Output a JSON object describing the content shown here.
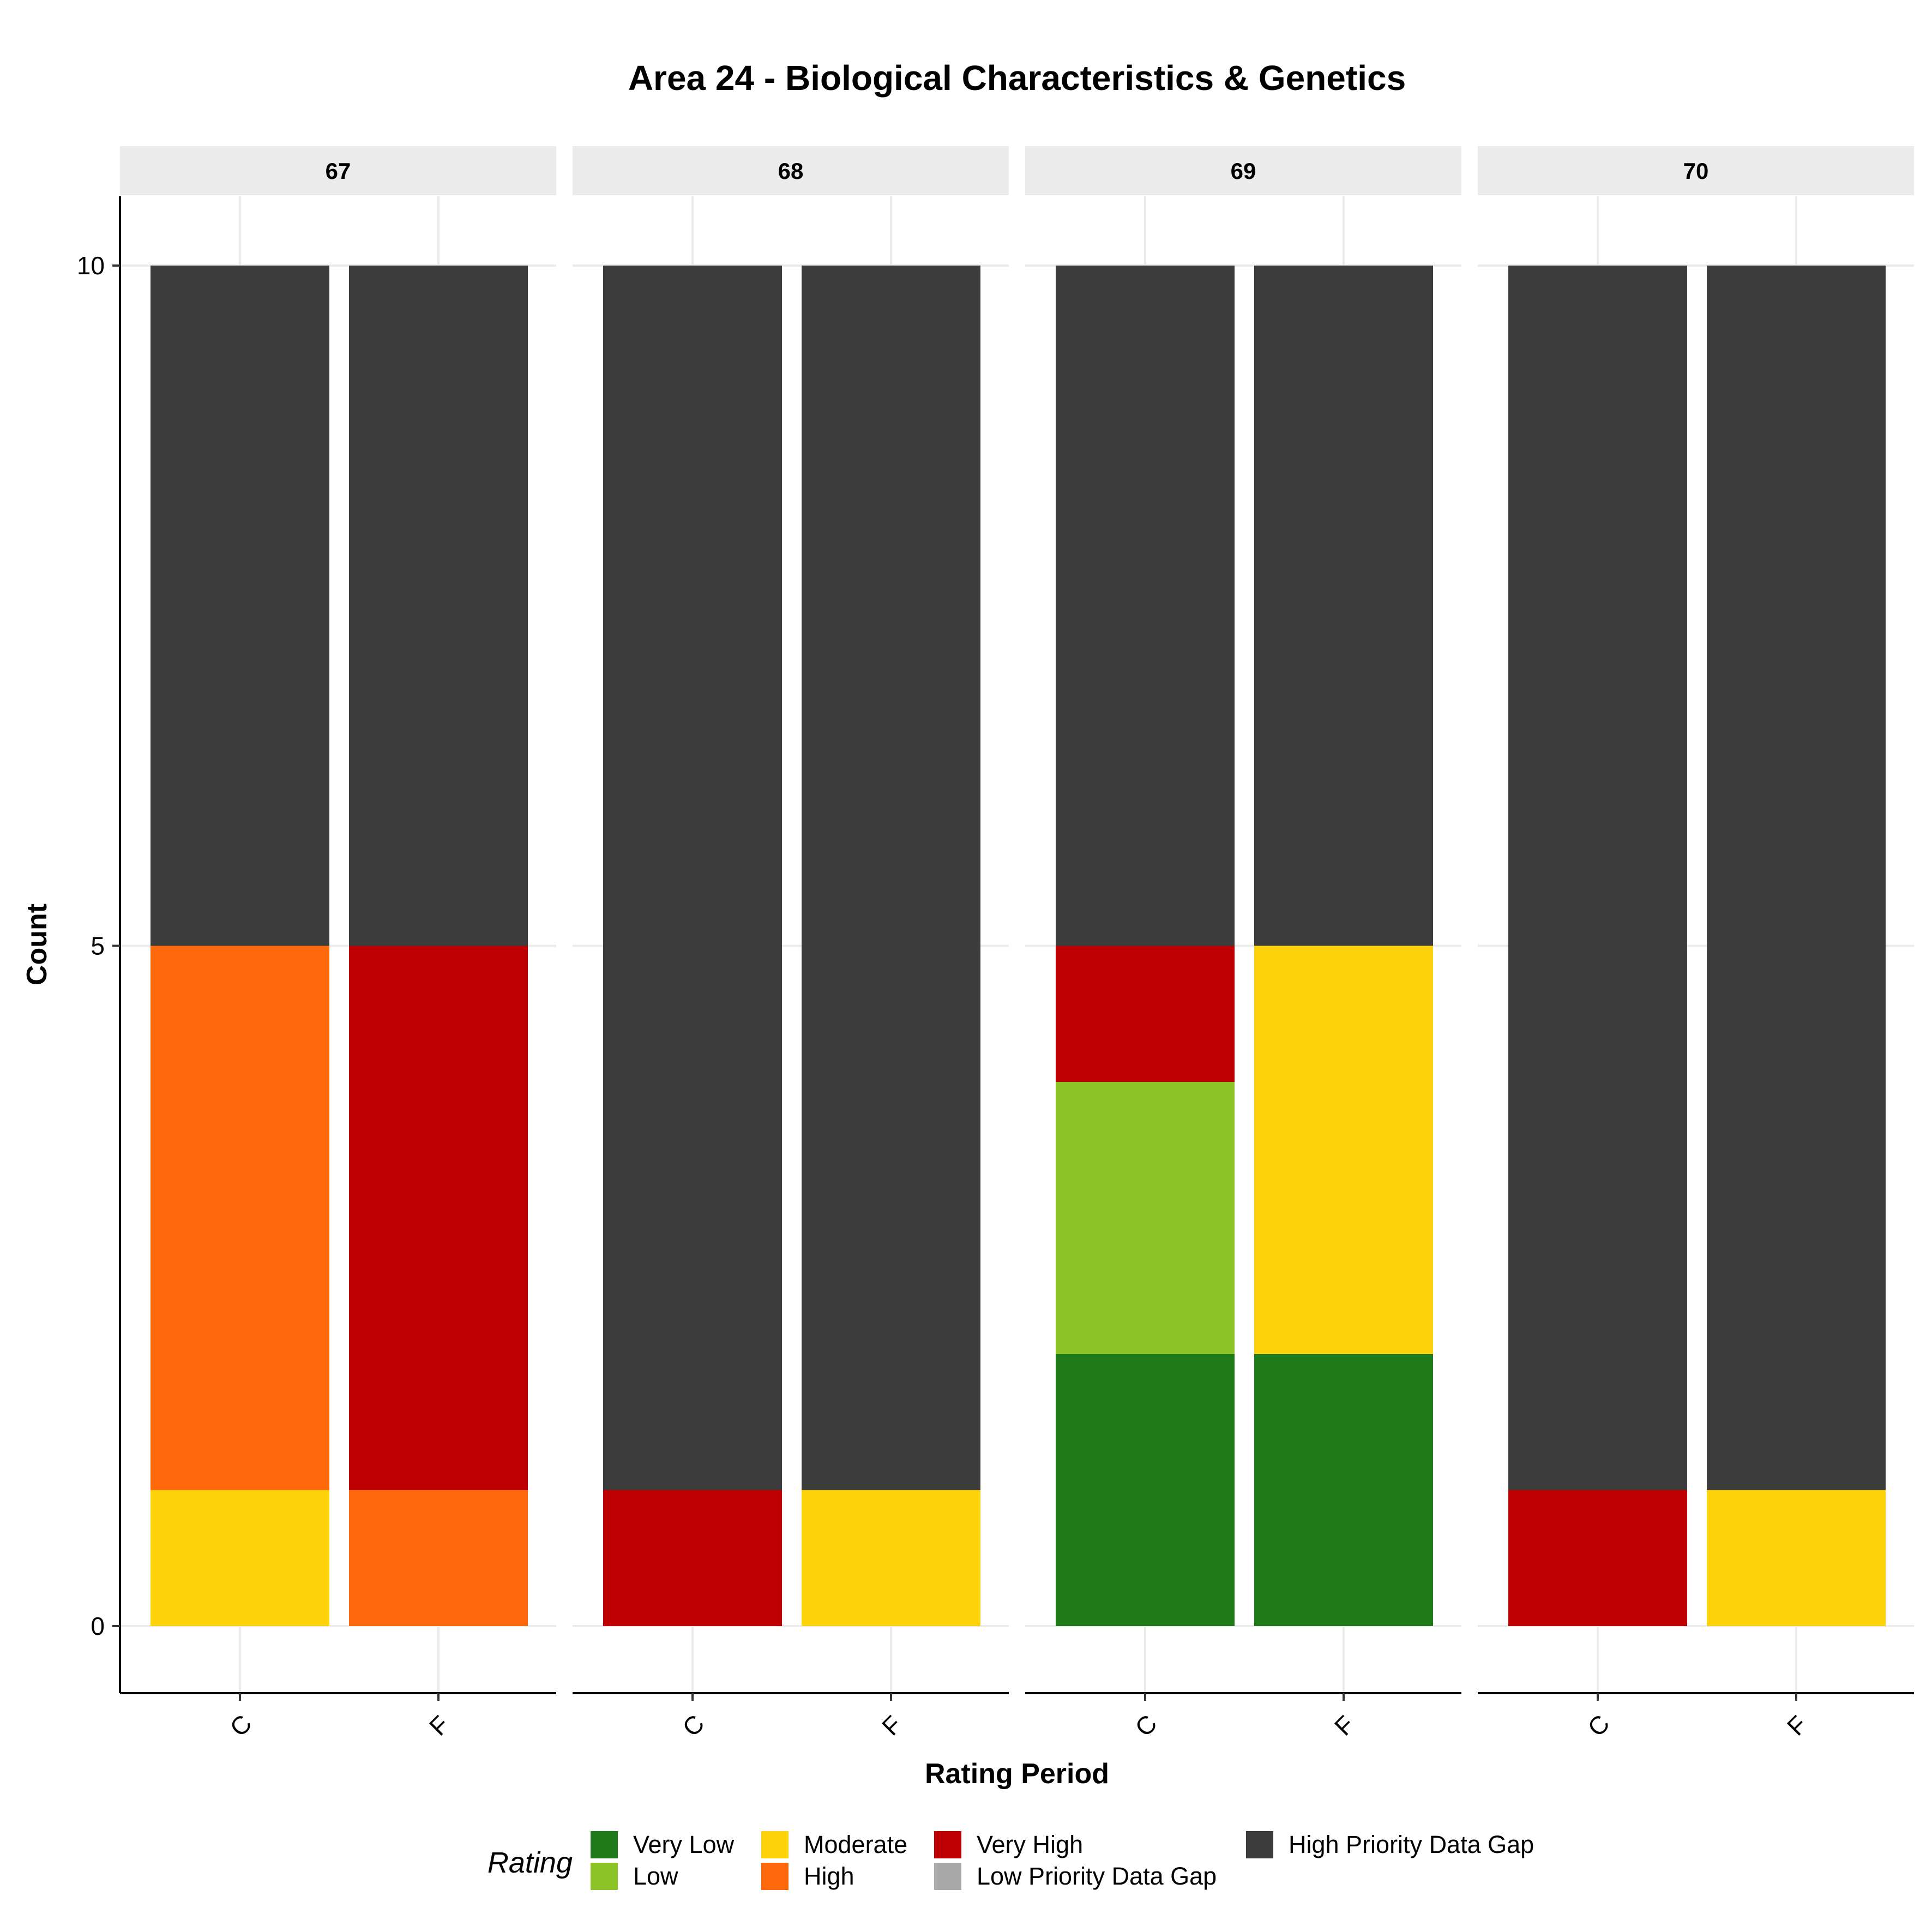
{
  "chart_data": {
    "type": "bar",
    "stacked": true,
    "title": "Area 24 - Biological Characteristics & Genetics",
    "xlabel": "Rating Period",
    "ylabel": "Count",
    "ylim": [
      0,
      10
    ],
    "yticks": [
      0,
      5,
      10
    ],
    "grid": true,
    "categories": [
      "C",
      "F"
    ],
    "legend": {
      "title": "Rating",
      "placement": "bottom",
      "entries": [
        {
          "label": "Very Low",
          "color": "#1f7a1a"
        },
        {
          "label": "Low",
          "color": "#8cc427"
        },
        {
          "label": "Moderate",
          "color": "#fed20a"
        },
        {
          "label": "High",
          "color": "#fd690a"
        },
        {
          "label": "Very High",
          "color": "#be0004"
        },
        {
          "label": "Low Priority Data Gap",
          "color": "#a9a9a9"
        },
        {
          "label": "High Priority Data Gap",
          "color": "#3c3c3c"
        }
      ]
    },
    "facets": [
      {
        "label": "67",
        "bars": [
          {
            "category": "C",
            "segments": [
              {
                "rating": "Moderate",
                "value": 1
              },
              {
                "rating": "High",
                "value": 4
              },
              {
                "rating": "High Priority Data Gap",
                "value": 5
              }
            ]
          },
          {
            "category": "F",
            "segments": [
              {
                "rating": "High",
                "value": 1
              },
              {
                "rating": "Very High",
                "value": 4
              },
              {
                "rating": "High Priority Data Gap",
                "value": 5
              }
            ]
          }
        ]
      },
      {
        "label": "68",
        "bars": [
          {
            "category": "C",
            "segments": [
              {
                "rating": "Very High",
                "value": 1
              },
              {
                "rating": "High Priority Data Gap",
                "value": 9
              }
            ]
          },
          {
            "category": "F",
            "segments": [
              {
                "rating": "Moderate",
                "value": 1
              },
              {
                "rating": "High Priority Data Gap",
                "value": 9
              }
            ]
          }
        ]
      },
      {
        "label": "69",
        "bars": [
          {
            "category": "C",
            "segments": [
              {
                "rating": "Very Low",
                "value": 2
              },
              {
                "rating": "Low",
                "value": 2
              },
              {
                "rating": "Very High",
                "value": 1
              },
              {
                "rating": "High Priority Data Gap",
                "value": 5
              }
            ]
          },
          {
            "category": "F",
            "segments": [
              {
                "rating": "Very Low",
                "value": 2
              },
              {
                "rating": "Moderate",
                "value": 3
              },
              {
                "rating": "High Priority Data Gap",
                "value": 5
              }
            ]
          }
        ]
      },
      {
        "label": "70",
        "bars": [
          {
            "category": "C",
            "segments": [
              {
                "rating": "Very High",
                "value": 1
              },
              {
                "rating": "High Priority Data Gap",
                "value": 9
              }
            ]
          },
          {
            "category": "F",
            "segments": [
              {
                "rating": "Moderate",
                "value": 1
              },
              {
                "rating": "High Priority Data Gap",
                "value": 9
              }
            ]
          }
        ]
      }
    ]
  }
}
